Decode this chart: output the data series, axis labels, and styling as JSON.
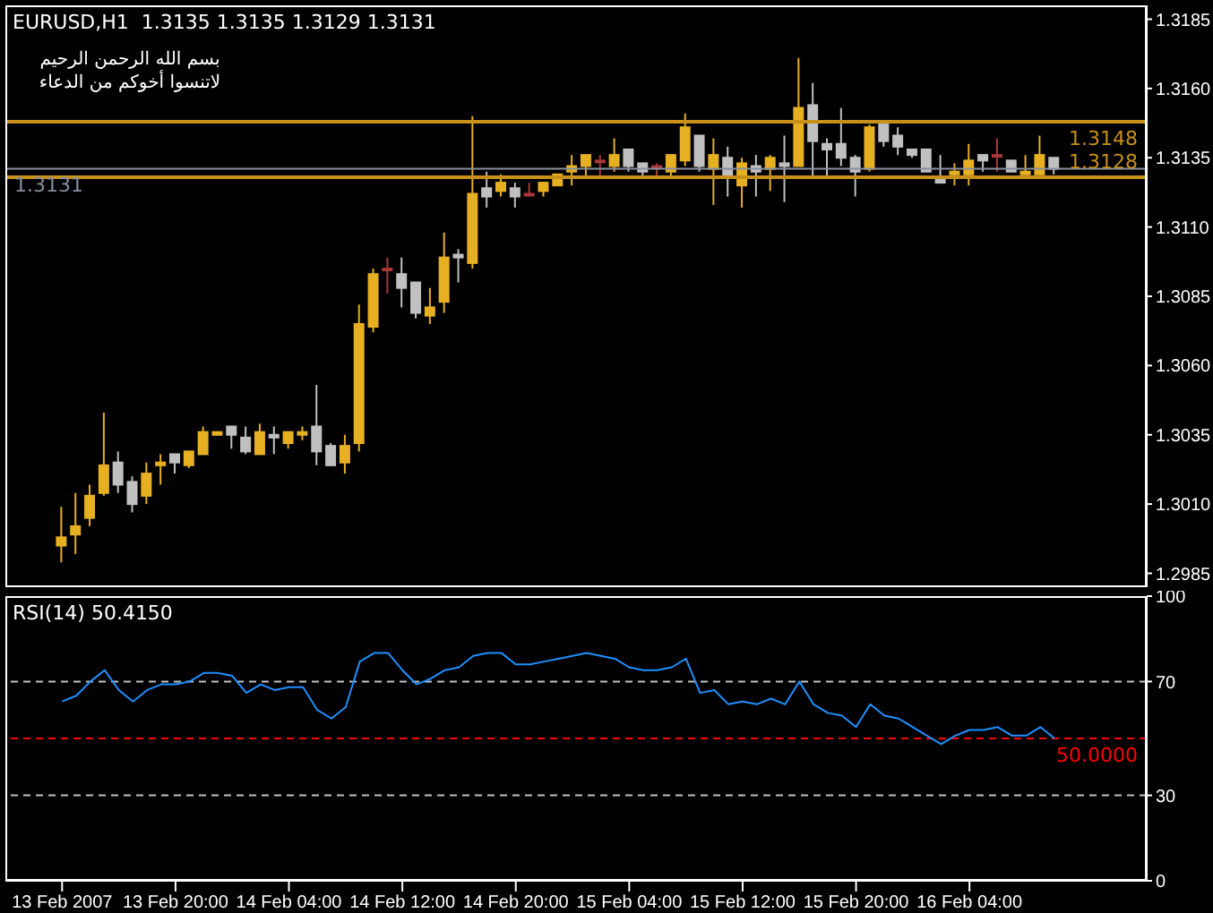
{
  "chart_data": [
    {
      "type": "candlestick",
      "title": "EURUSD,H1  1.3135 1.3135 1.3129 1.3131",
      "annotations": [
        "بسم الله الرحمن الرحيم",
        "لاتنسوا أخوكم من الدعاء"
      ],
      "categories": [
        null,
        null,
        null,
        null,
        null,
        null,
        null,
        null,
        null,
        null,
        null,
        null,
        null,
        null,
        null,
        null,
        null,
        null,
        null,
        null,
        null,
        null,
        null,
        null,
        null,
        null,
        null,
        null,
        null,
        null,
        null,
        null,
        null,
        null,
        null,
        null,
        null,
        null,
        null,
        null,
        null,
        null,
        null,
        null,
        null,
        null,
        null,
        null,
        null,
        null,
        null,
        null,
        null,
        null,
        null,
        null,
        null,
        null,
        null,
        null,
        null,
        null,
        null,
        null,
        null,
        null,
        null,
        null,
        null,
        null,
        null
      ],
      "ohlc": [
        [
          1.2995,
          1.3009,
          1.2989,
          1.2998
        ],
        [
          1.2999,
          1.3014,
          1.2992,
          1.3002
        ],
        [
          1.3005,
          1.3017,
          1.3002,
          1.3013
        ],
        [
          1.3014,
          1.3043,
          1.3013,
          1.3024
        ],
        [
          1.3025,
          1.3029,
          1.3014,
          1.3017
        ],
        [
          1.3018,
          1.302,
          1.3007,
          1.301
        ],
        [
          1.3013,
          1.3025,
          1.301,
          1.3021
        ],
        [
          1.3024,
          1.3028,
          1.3017,
          1.3025
        ],
        [
          1.3028,
          1.3028,
          1.3021,
          1.3025
        ],
        [
          1.3024,
          1.3029,
          1.3023,
          1.3029
        ],
        [
          1.3028,
          1.3038,
          1.3028,
          1.3036
        ],
        [
          1.3035,
          1.3036,
          1.3035,
          1.3036
        ],
        [
          1.3038,
          1.3038,
          1.303,
          1.3035
        ],
        [
          1.3034,
          1.3038,
          1.3028,
          1.3029
        ],
        [
          1.3028,
          1.3039,
          1.3028,
          1.3036
        ],
        [
          1.3035,
          1.3038,
          1.3028,
          1.3034
        ],
        [
          1.3032,
          1.3036,
          1.303,
          1.3036
        ],
        [
          1.3035,
          1.3038,
          1.3033,
          1.3036
        ],
        [
          1.3038,
          1.3053,
          1.3024,
          1.3029
        ],
        [
          1.3031,
          1.3032,
          1.3024,
          1.3024
        ],
        [
          1.3025,
          1.3035,
          1.3021,
          1.3031
        ],
        [
          1.3032,
          1.3082,
          1.3029,
          1.3075
        ],
        [
          1.3074,
          1.3095,
          1.3072,
          1.3093
        ],
        [
          1.3095,
          1.3099,
          1.3086,
          1.3095
        ],
        [
          1.3093,
          1.3099,
          1.3081,
          1.3088
        ],
        [
          1.309,
          1.309,
          1.3077,
          1.3079
        ],
        [
          1.3078,
          1.3088,
          1.3075,
          1.3081
        ],
        [
          1.3083,
          1.3108,
          1.3079,
          1.3099
        ],
        [
          1.31,
          1.3102,
          1.309,
          1.3099
        ],
        [
          1.3097,
          1.315,
          1.3095,
          1.3122
        ],
        [
          1.3124,
          1.313,
          1.3117,
          1.3121
        ],
        [
          1.3123,
          1.3129,
          1.3121,
          1.3126
        ],
        [
          1.3124,
          1.3126,
          1.3117,
          1.3121
        ],
        [
          1.3122,
          1.3126,
          1.3121,
          1.3122
        ],
        [
          1.3123,
          1.3126,
          1.3121,
          1.3126
        ],
        [
          1.3125,
          1.3129,
          1.3125,
          1.3129
        ],
        [
          1.313,
          1.3136,
          1.3125,
          1.3132
        ],
        [
          1.3132,
          1.3136,
          1.3128,
          1.3136
        ],
        [
          1.3134,
          1.3136,
          1.3128,
          1.3134
        ],
        [
          1.3132,
          1.3142,
          1.313,
          1.3136
        ],
        [
          1.3138,
          1.3138,
          1.313,
          1.3132
        ],
        [
          1.3133,
          1.3133,
          1.3128,
          1.313
        ],
        [
          1.3132,
          1.3133,
          1.3128,
          1.3132
        ],
        [
          1.313,
          1.3136,
          1.3128,
          1.3136
        ],
        [
          1.3134,
          1.3151,
          1.3132,
          1.3146
        ],
        [
          1.3143,
          1.3143,
          1.313,
          1.3132
        ],
        [
          1.3131,
          1.3142,
          1.3118,
          1.3136
        ],
        [
          1.3135,
          1.3139,
          1.3121,
          1.3128
        ],
        [
          1.3125,
          1.3135,
          1.3117,
          1.3133
        ],
        [
          1.3132,
          1.3136,
          1.3121,
          1.313
        ],
        [
          1.3131,
          1.3136,
          1.3123,
          1.3135
        ],
        [
          1.3133,
          1.3143,
          1.3119,
          1.3132
        ],
        [
          1.3132,
          1.3171,
          1.3132,
          1.3153
        ],
        [
          1.3154,
          1.3162,
          1.3128,
          1.3141
        ],
        [
          1.314,
          1.3142,
          1.3128,
          1.3138
        ],
        [
          1.314,
          1.3153,
          1.3132,
          1.3135
        ],
        [
          1.3135,
          1.3136,
          1.3121,
          1.313
        ],
        [
          1.3131,
          1.3147,
          1.313,
          1.3146
        ],
        [
          1.3147,
          1.3147,
          1.3139,
          1.3141
        ],
        [
          1.3143,
          1.3146,
          1.3136,
          1.3139
        ],
        [
          1.3138,
          1.3138,
          1.3135,
          1.3136
        ],
        [
          1.3138,
          1.3138,
          1.313,
          1.313
        ],
        [
          1.3127,
          1.3136,
          1.3126,
          1.3126
        ],
        [
          1.3129,
          1.3133,
          1.3125,
          1.313
        ],
        [
          1.3129,
          1.314,
          1.3125,
          1.3134
        ],
        [
          1.3136,
          1.3136,
          1.313,
          1.3134
        ],
        [
          1.3136,
          1.3142,
          1.313,
          1.3136
        ],
        [
          1.3134,
          1.3134,
          1.313,
          1.313
        ],
        [
          1.3129,
          1.3136,
          1.3129,
          1.313
        ],
        [
          1.3129,
          1.3143,
          1.3129,
          1.3136
        ],
        [
          1.3135,
          1.3135,
          1.3129,
          1.3131
        ]
      ],
      "colors": [
        "#e6b022",
        "#e6b022",
        "#e6b022",
        "#e6b022",
        "#c0c0c0",
        "#c0c0c0",
        "#e6b022",
        "#e6b022",
        "#c0c0c0",
        "#e6b022",
        "#e6b022",
        "#e6b022",
        "#c0c0c0",
        "#c0c0c0",
        "#e6b022",
        "#c0c0c0",
        "#e6b022",
        "#e6b022",
        "#c0c0c0",
        "#c0c0c0",
        "#e6b022",
        "#e6b022",
        "#e6b022",
        "#a83838",
        "#c0c0c0",
        "#c0c0c0",
        "#e6b022",
        "#e6b022",
        "#c0c0c0",
        "#e6b022",
        "#c0c0c0",
        "#e6b022",
        "#c0c0c0",
        "#a83838",
        "#e6b022",
        "#e6b022",
        "#e6b022",
        "#e6b022",
        "#a83838",
        "#e6b022",
        "#c0c0c0",
        "#c0c0c0",
        "#a83838",
        "#e6b022",
        "#e6b022",
        "#c0c0c0",
        "#e6b022",
        "#c0c0c0",
        "#e6b022",
        "#c0c0c0",
        "#e6b022",
        "#c0c0c0",
        "#e6b022",
        "#c0c0c0",
        "#c0c0c0",
        "#c0c0c0",
        "#c0c0c0",
        "#e6b022",
        "#c0c0c0",
        "#c0c0c0",
        "#c0c0c0",
        "#c0c0c0",
        "#c0c0c0",
        "#e6b022",
        "#e6b022",
        "#c0c0c0",
        "#a83838",
        "#c0c0c0",
        "#e6b022",
        "#e6b022",
        "#c0c0c0"
      ],
      "ylim": [
        1.298,
        1.319
      ],
      "yticks": [
        1.2985,
        {
          "value": 1.301,
          "label": "1.3010"
        },
        1.3035,
        {
          "value": 1.306,
          "label": "1.3060"
        },
        1.3085,
        {
          "value": 1.311,
          "label": "1.3110"
        },
        1.3135,
        {
          "value": 1.316,
          "label": "1.3160"
        },
        1.3185
      ],
      "ref_lines": [
        {
          "axis": "y",
          "value": 1.3131,
          "label": "1.3131",
          "color": "#8890a0"
        },
        {
          "axis": "y",
          "value": 1.3148,
          "label": "1.3148",
          "color": "#c8901a"
        },
        {
          "axis": "y",
          "value": 1.3128,
          "label": "1.3128",
          "color": "#c8901a"
        }
      ],
      "tick_labels": "y"
    },
    {
      "type": "line",
      "title": "RSI(14) 50.4150",
      "categories": [
        "13 Feb 2007",
        null,
        null,
        null,
        null,
        null,
        null,
        null,
        "13 Feb 20:00",
        null,
        null,
        null,
        null,
        null,
        null,
        null,
        "14 Feb 04:00",
        null,
        null,
        null,
        null,
        null,
        null,
        null,
        "14 Feb 12:00",
        null,
        null,
        null,
        null,
        null,
        null,
        null,
        "14 Feb 20:00",
        null,
        null,
        null,
        null,
        null,
        null,
        null,
        "15 Feb 04:00",
        null,
        null,
        null,
        null,
        null,
        null,
        null,
        "15 Feb 12:00",
        null,
        null,
        null,
        null,
        null,
        null,
        null,
        "15 Feb 20:00",
        null,
        null,
        null,
        null,
        null,
        null,
        null,
        "16 Feb 04:00",
        null,
        null,
        null,
        null,
        null,
        null
      ],
      "values": [
        63,
        65,
        70,
        74,
        67,
        63,
        67,
        69,
        69,
        70,
        73,
        73,
        72,
        66,
        69,
        67,
        68,
        68,
        60,
        57,
        61,
        77,
        80,
        80,
        74,
        69,
        71,
        74,
        75,
        79,
        80,
        80,
        76,
        76,
        77,
        78,
        79,
        80,
        79,
        78,
        75,
        74,
        74,
        75,
        78,
        66,
        67,
        62,
        63,
        62,
        64,
        62,
        70,
        62,
        59,
        58,
        54,
        62,
        58,
        57,
        54,
        51,
        48,
        51,
        53,
        53,
        54,
        51,
        51,
        54,
        50
      ],
      "color": "#1e90ff",
      "ylim": [
        0,
        100
      ],
      "yticks": [
        0,
        30,
        70,
        100
      ],
      "ref_lines": [
        {
          "axis": "y",
          "value": 70,
          "color": "#c0c0c0",
          "line_style": "dashed"
        },
        {
          "axis": "y",
          "value": 50,
          "label": "50.0000",
          "color": "#ff0000",
          "line_style": "dashed"
        },
        {
          "axis": "y",
          "value": 30,
          "color": "#c0c0c0",
          "line_style": "dashed"
        }
      ]
    }
  ]
}
